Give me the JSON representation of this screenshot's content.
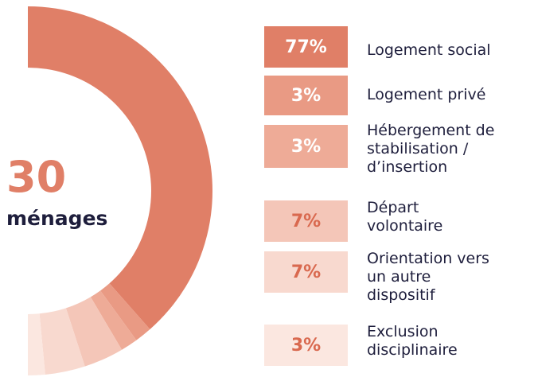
{
  "chart_data": {
    "type": "donut",
    "center_value": 30,
    "center_label": "ménages",
    "categories": [
      [
        "Logement social"
      ],
      [
        "Logement privé"
      ],
      [
        "Hébergement de",
        "stabilisation /",
        "d’insertion"
      ],
      [
        "Départ",
        "volontaire"
      ],
      [
        "Orientation vers",
        "un autre",
        "dispositif"
      ],
      [
        "Exclusion",
        "disciplinaire"
      ]
    ],
    "values": [
      77,
      3,
      3,
      7,
      7,
      3
    ],
    "value_labels": [
      "77%",
      "3%",
      "3%",
      "7%",
      "7%",
      "3%"
    ],
    "colors": [
      "#e07f67",
      "#e99a84",
      "#eeab97",
      "#f4c6b8",
      "#f8d9cf",
      "#fbe7e0"
    ]
  }
}
